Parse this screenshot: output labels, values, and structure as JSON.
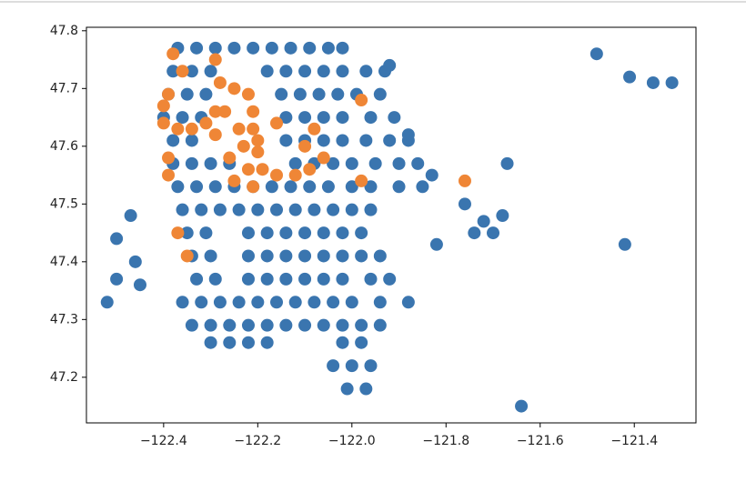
{
  "chart_data": {
    "type": "scatter",
    "xlim": [
      -122.564,
      -121.269
    ],
    "ylim": [
      47.121,
      47.806
    ],
    "xticks": [
      {
        "value": -122.4,
        "label": "−122.4"
      },
      {
        "value": -122.2,
        "label": "−122.2"
      },
      {
        "value": -122.0,
        "label": "−122.0"
      },
      {
        "value": -121.8,
        "label": "−121.8"
      },
      {
        "value": -121.6,
        "label": "−121.6"
      },
      {
        "value": -121.4,
        "label": "−121.4"
      }
    ],
    "yticks": [
      47.2,
      47.3,
      47.4,
      47.5,
      47.6,
      47.7,
      47.8
    ],
    "series": [
      {
        "color": "#3a75af",
        "x": [
          -122.37,
          -122.33,
          -122.29,
          -122.25,
          -122.21,
          -122.17,
          -122.13,
          -122.09,
          -122.05,
          -122.02,
          -122.38,
          -122.34,
          -122.3,
          -122.18,
          -122.14,
          -122.1,
          -122.06,
          -122.02,
          -121.97,
          -121.93,
          -122.39,
          -122.35,
          -122.31,
          -122.15,
          -122.11,
          -122.07,
          -122.03,
          -121.99,
          -121.94,
          -122.4,
          -122.36,
          -122.32,
          -122.14,
          -122.1,
          -122.06,
          -122.02,
          -121.96,
          -121.91,
          -122.38,
          -122.34,
          -122.14,
          -122.1,
          -122.06,
          -122.02,
          -121.97,
          -121.92,
          -121.88,
          -122.38,
          -122.34,
          -122.3,
          -122.26,
          -122.12,
          -122.08,
          -122.04,
          -122.0,
          -121.95,
          -121.9,
          -121.86,
          -122.37,
          -122.33,
          -122.29,
          -122.25,
          -122.21,
          -122.17,
          -122.13,
          -122.09,
          -122.05,
          -122.0,
          -121.96,
          -121.9,
          -121.85,
          -122.36,
          -122.32,
          -122.28,
          -122.24,
          -122.2,
          -122.16,
          -122.12,
          -122.08,
          -122.04,
          -122.0,
          -121.96,
          -122.35,
          -122.31,
          -122.22,
          -122.18,
          -122.14,
          -122.1,
          -122.06,
          -122.02,
          -121.98,
          -122.34,
          -122.3,
          -122.22,
          -122.18,
          -122.14,
          -122.1,
          -122.06,
          -122.02,
          -121.98,
          -121.94,
          -122.33,
          -122.29,
          -122.22,
          -122.18,
          -122.14,
          -122.1,
          -122.06,
          -122.02,
          -121.96,
          -121.92,
          -122.36,
          -122.32,
          -122.28,
          -122.24,
          -122.2,
          -122.16,
          -122.12,
          -122.08,
          -122.04,
          -122.0,
          -121.94,
          -121.88,
          -122.34,
          -122.3,
          -122.26,
          -122.22,
          -122.18,
          -122.14,
          -122.1,
          -122.06,
          -122.02,
          -121.98,
          -121.94,
          -122.3,
          -122.26,
          -122.22,
          -122.18,
          -122.02,
          -121.98,
          -122.04,
          -122.0,
          -121.96,
          -122.01,
          -121.97,
          -122.5,
          -122.47,
          -122.46,
          -122.5,
          -122.45,
          -122.52,
          -121.76,
          -121.72,
          -121.7,
          -121.74,
          -121.68,
          -121.67,
          -121.82,
          -121.48,
          -121.41,
          -121.36,
          -121.32,
          -121.42,
          -121.64,
          -121.83,
          -121.92,
          -121.88
        ],
        "y": [
          47.77,
          47.77,
          47.77,
          47.77,
          47.77,
          47.77,
          47.77,
          47.77,
          47.77,
          47.77,
          47.73,
          47.73,
          47.73,
          47.73,
          47.73,
          47.73,
          47.73,
          47.73,
          47.73,
          47.73,
          47.69,
          47.69,
          47.69,
          47.69,
          47.69,
          47.69,
          47.69,
          47.69,
          47.69,
          47.65,
          47.65,
          47.65,
          47.65,
          47.65,
          47.65,
          47.65,
          47.65,
          47.65,
          47.61,
          47.61,
          47.61,
          47.61,
          47.61,
          47.61,
          47.61,
          47.61,
          47.61,
          47.57,
          47.57,
          47.57,
          47.57,
          47.57,
          47.57,
          47.57,
          47.57,
          47.57,
          47.57,
          47.57,
          47.53,
          47.53,
          47.53,
          47.53,
          47.53,
          47.53,
          47.53,
          47.53,
          47.53,
          47.53,
          47.53,
          47.53,
          47.53,
          47.49,
          47.49,
          47.49,
          47.49,
          47.49,
          47.49,
          47.49,
          47.49,
          47.49,
          47.49,
          47.49,
          47.45,
          47.45,
          47.45,
          47.45,
          47.45,
          47.45,
          47.45,
          47.45,
          47.45,
          47.41,
          47.41,
          47.41,
          47.41,
          47.41,
          47.41,
          47.41,
          47.41,
          47.41,
          47.41,
          47.37,
          47.37,
          47.37,
          47.37,
          47.37,
          47.37,
          47.37,
          47.37,
          47.37,
          47.37,
          47.33,
          47.33,
          47.33,
          47.33,
          47.33,
          47.33,
          47.33,
          47.33,
          47.33,
          47.33,
          47.33,
          47.33,
          47.29,
          47.29,
          47.29,
          47.29,
          47.29,
          47.29,
          47.29,
          47.29,
          47.29,
          47.29,
          47.29,
          47.26,
          47.26,
          47.26,
          47.26,
          47.26,
          47.26,
          47.22,
          47.22,
          47.22,
          47.18,
          47.18,
          47.44,
          47.48,
          47.4,
          47.37,
          47.36,
          47.33,
          47.5,
          47.47,
          47.45,
          47.45,
          47.48,
          47.57,
          47.43,
          47.76,
          47.72,
          47.71,
          47.71,
          47.43,
          47.15,
          47.55,
          47.74,
          47.62
        ]
      },
      {
        "color": "#ef8636",
        "x": [
          -122.38,
          -122.36,
          -122.39,
          -122.4,
          -122.4,
          -122.37,
          -122.34,
          -122.31,
          -122.29,
          -122.27,
          -122.29,
          -122.28,
          -122.25,
          -122.22,
          -122.21,
          -122.24,
          -122.21,
          -122.23,
          -122.2,
          -122.26,
          -122.22,
          -122.19,
          -122.25,
          -122.21,
          -122.16,
          -122.12,
          -122.1,
          -122.08,
          -122.06,
          -122.09,
          -122.16,
          -121.98,
          -121.98,
          -121.76,
          -122.39,
          -122.39,
          -122.37,
          -122.35,
          -122.29,
          -122.2
        ],
        "y": [
          47.76,
          47.73,
          47.69,
          47.67,
          47.64,
          47.63,
          47.63,
          47.64,
          47.62,
          47.66,
          47.75,
          47.71,
          47.7,
          47.69,
          47.66,
          47.63,
          47.63,
          47.6,
          47.59,
          47.58,
          47.56,
          47.56,
          47.54,
          47.53,
          47.55,
          47.55,
          47.6,
          47.63,
          47.58,
          47.56,
          47.64,
          47.68,
          47.54,
          47.54,
          47.58,
          47.55,
          47.45,
          47.41,
          47.66,
          47.61
        ]
      }
    ]
  }
}
